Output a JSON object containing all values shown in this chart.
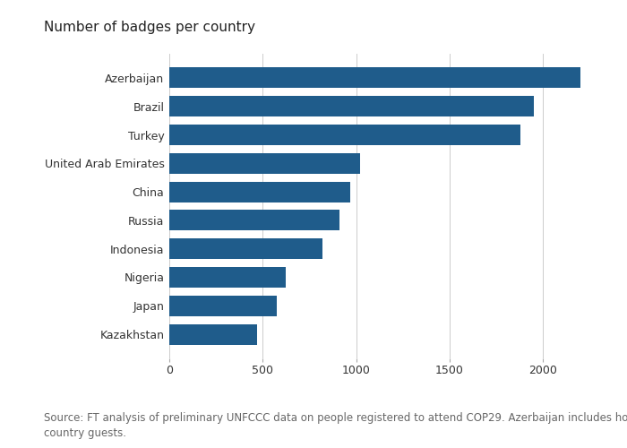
{
  "title": "Number of badges per country",
  "categories": [
    "Azerbaijan",
    "Brazil",
    "Turkey",
    "United Arab Emirates",
    "China",
    "Russia",
    "Indonesia",
    "Nigeria",
    "Japan",
    "Kazakhstan"
  ],
  "values": [
    2200,
    1950,
    1880,
    1020,
    970,
    910,
    820,
    625,
    575,
    470
  ],
  "bar_color": "#1f5c8b",
  "xlim": [
    0,
    2350
  ],
  "xticks": [
    0,
    500,
    1000,
    1500,
    2000
  ],
  "source_text": "Source: FT analysis of preliminary UNFCCC data on people registered to attend COP29. Azerbaijan includes host\ncountry guests.",
  "title_fontsize": 11,
  "tick_fontsize": 9,
  "source_fontsize": 8.5,
  "background_color": "#ffffff",
  "bar_height": 0.72,
  "text_color": "#333333",
  "grid_color": "#cccccc",
  "source_color": "#666666"
}
